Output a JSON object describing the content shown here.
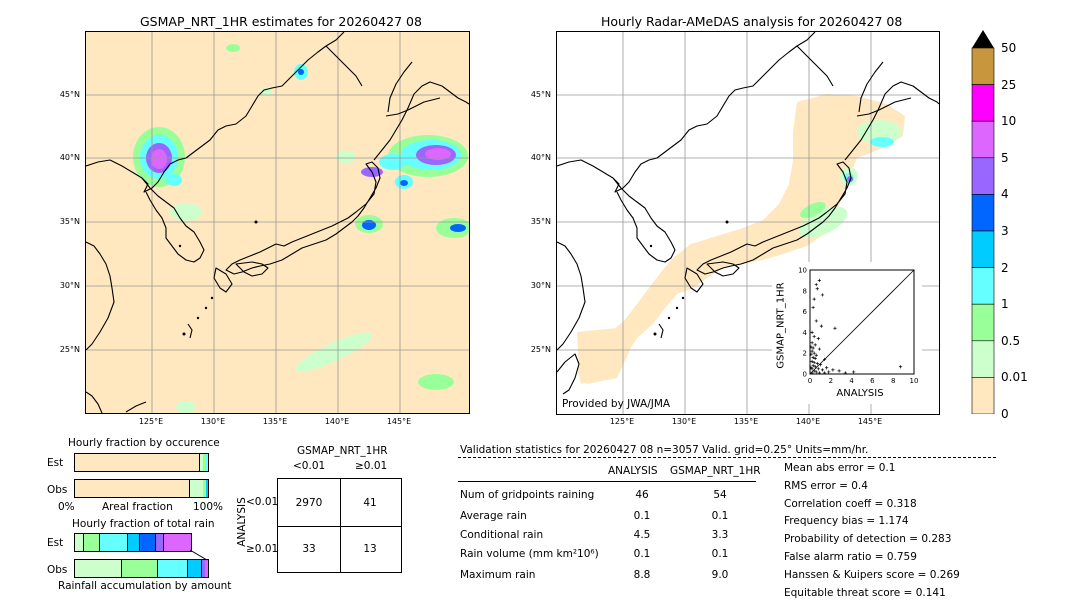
{
  "left_map": {
    "title": "GSMAP_NRT_1HR estimates for 20260427 08",
    "lat_labels": [
      "45°N",
      "40°N",
      "35°N",
      "30°N",
      "25°N"
    ],
    "lon_labels": [
      "125°E",
      "130°E",
      "135°E",
      "140°E",
      "145°E"
    ]
  },
  "right_map": {
    "title": "Hourly Radar-AMeDAS analysis for 20260427 08",
    "lat_labels": [
      "45°N",
      "40°N",
      "35°N",
      "30°N",
      "25°N"
    ],
    "lon_labels": [
      "125°E",
      "130°E",
      "135°E",
      "140°E",
      "145°E"
    ],
    "credit": "Provided by JWA/JMA"
  },
  "colorbar": {
    "labels": [
      "50",
      "25",
      "10",
      "5",
      "4",
      "3",
      "2",
      "1",
      "0.5",
      "0.01",
      "0"
    ],
    "colors": [
      "#c8963c",
      "#ff00ff",
      "#dd66ff",
      "#9966ff",
      "#0066ff",
      "#00ccff",
      "#66ffff",
      "#99ff99",
      "#ccffcc",
      "#ffe8c0"
    ]
  },
  "fraction_occurrence": {
    "title": "Hourly fraction by occurence",
    "row_labels": [
      "Est",
      "Obs"
    ],
    "axis_left": "0%",
    "axis_mid": "Areal fraction",
    "axis_right": "100%"
  },
  "fraction_total": {
    "title": "Hourly fraction of total rain",
    "row_labels": [
      "Est",
      "Obs"
    ],
    "footer": "Rainfall accumulation by amount"
  },
  "contingency": {
    "title": "GSMAP_NRT_1HR",
    "col_lt": "<0.01",
    "col_ge": "≥0.01",
    "row_axis": "ANALYSIS",
    "row_lt": "<0.01",
    "row_ge": "≥0.01",
    "cells": [
      "2970",
      "41",
      "33",
      "13"
    ]
  },
  "validation": {
    "header": "Validation statistics for 20260427 08  n=3057 Valid. grid=0.25° Units=mm/hr.",
    "col_analysis": "ANALYSIS",
    "col_gsmap": "GSMAP_NRT_1HR",
    "rows": [
      {
        "label": "Num of gridpoints raining",
        "analysis": "46",
        "gsmap": "54"
      },
      {
        "label": "Average rain",
        "analysis": "0.1",
        "gsmap": "0.1"
      },
      {
        "label": "Conditional rain",
        "analysis": "4.5",
        "gsmap": "3.3"
      },
      {
        "label": "Rain volume (mm km²10⁶)",
        "analysis": "0.1",
        "gsmap": "0.1"
      },
      {
        "label": "Maximum rain",
        "analysis": "8.8",
        "gsmap": "9.0"
      }
    ],
    "scores": [
      "Mean abs error =    0.1",
      "RMS error =    0.4",
      "Correlation coeff =  0.318",
      "Frequency bias =  1.174",
      "Probability of detection =  0.283",
      "False alarm ratio =  0.759",
      "Hanssen & Kuipers score =  0.269",
      "Equitable threat score =  0.141"
    ]
  },
  "chart_data": {
    "type": "scatter",
    "xlabel": "ANALYSIS",
    "ylabel": "GSMAP_NRT_1HR",
    "xlim": [
      0,
      10
    ],
    "ylim": [
      0,
      10
    ],
    "ticks": [
      "0",
      "2",
      "4",
      "6",
      "8",
      "10"
    ],
    "points": [
      [
        0.6,
        8.6
      ],
      [
        0.9,
        9.0
      ],
      [
        0.7,
        8.2
      ],
      [
        1.2,
        7.6
      ],
      [
        0.4,
        7.2
      ],
      [
        0.3,
        6.4
      ],
      [
        0.6,
        5.1
      ],
      [
        1.1,
        4.6
      ],
      [
        2.4,
        4.4
      ],
      [
        0.2,
        4.0
      ],
      [
        0.4,
        3.6
      ],
      [
        0.8,
        3.4
      ],
      [
        0.2,
        3.0
      ],
      [
        0.5,
        2.8
      ],
      [
        0.3,
        2.5
      ],
      [
        0.9,
        2.4
      ],
      [
        0.2,
        2.2
      ],
      [
        0.4,
        2.0
      ],
      [
        0.6,
        1.8
      ],
      [
        0.3,
        1.6
      ],
      [
        0.5,
        1.5
      ],
      [
        1.4,
        1.4
      ],
      [
        0.2,
        1.2
      ],
      [
        0.4,
        1.1
      ],
      [
        0.7,
        1.0
      ],
      [
        1.0,
        0.9
      ],
      [
        0.3,
        0.8
      ],
      [
        0.5,
        0.7
      ],
      [
        1.6,
        0.6
      ],
      [
        0.2,
        0.5
      ],
      [
        0.8,
        0.5
      ],
      [
        1.2,
        0.4
      ],
      [
        2.2,
        0.4
      ],
      [
        0.4,
        0.3
      ],
      [
        0.6,
        0.2
      ],
      [
        1.8,
        0.2
      ],
      [
        2.8,
        0.3
      ],
      [
        0.2,
        0.1
      ],
      [
        0.9,
        0.1
      ],
      [
        1.4,
        0.1
      ],
      [
        3.4,
        0.1
      ],
      [
        4.2,
        0.2
      ],
      [
        8.7,
        0.7
      ],
      [
        0.1,
        0.6
      ],
      [
        0.1,
        2.6
      ],
      [
        0.1,
        1.9
      ]
    ]
  }
}
